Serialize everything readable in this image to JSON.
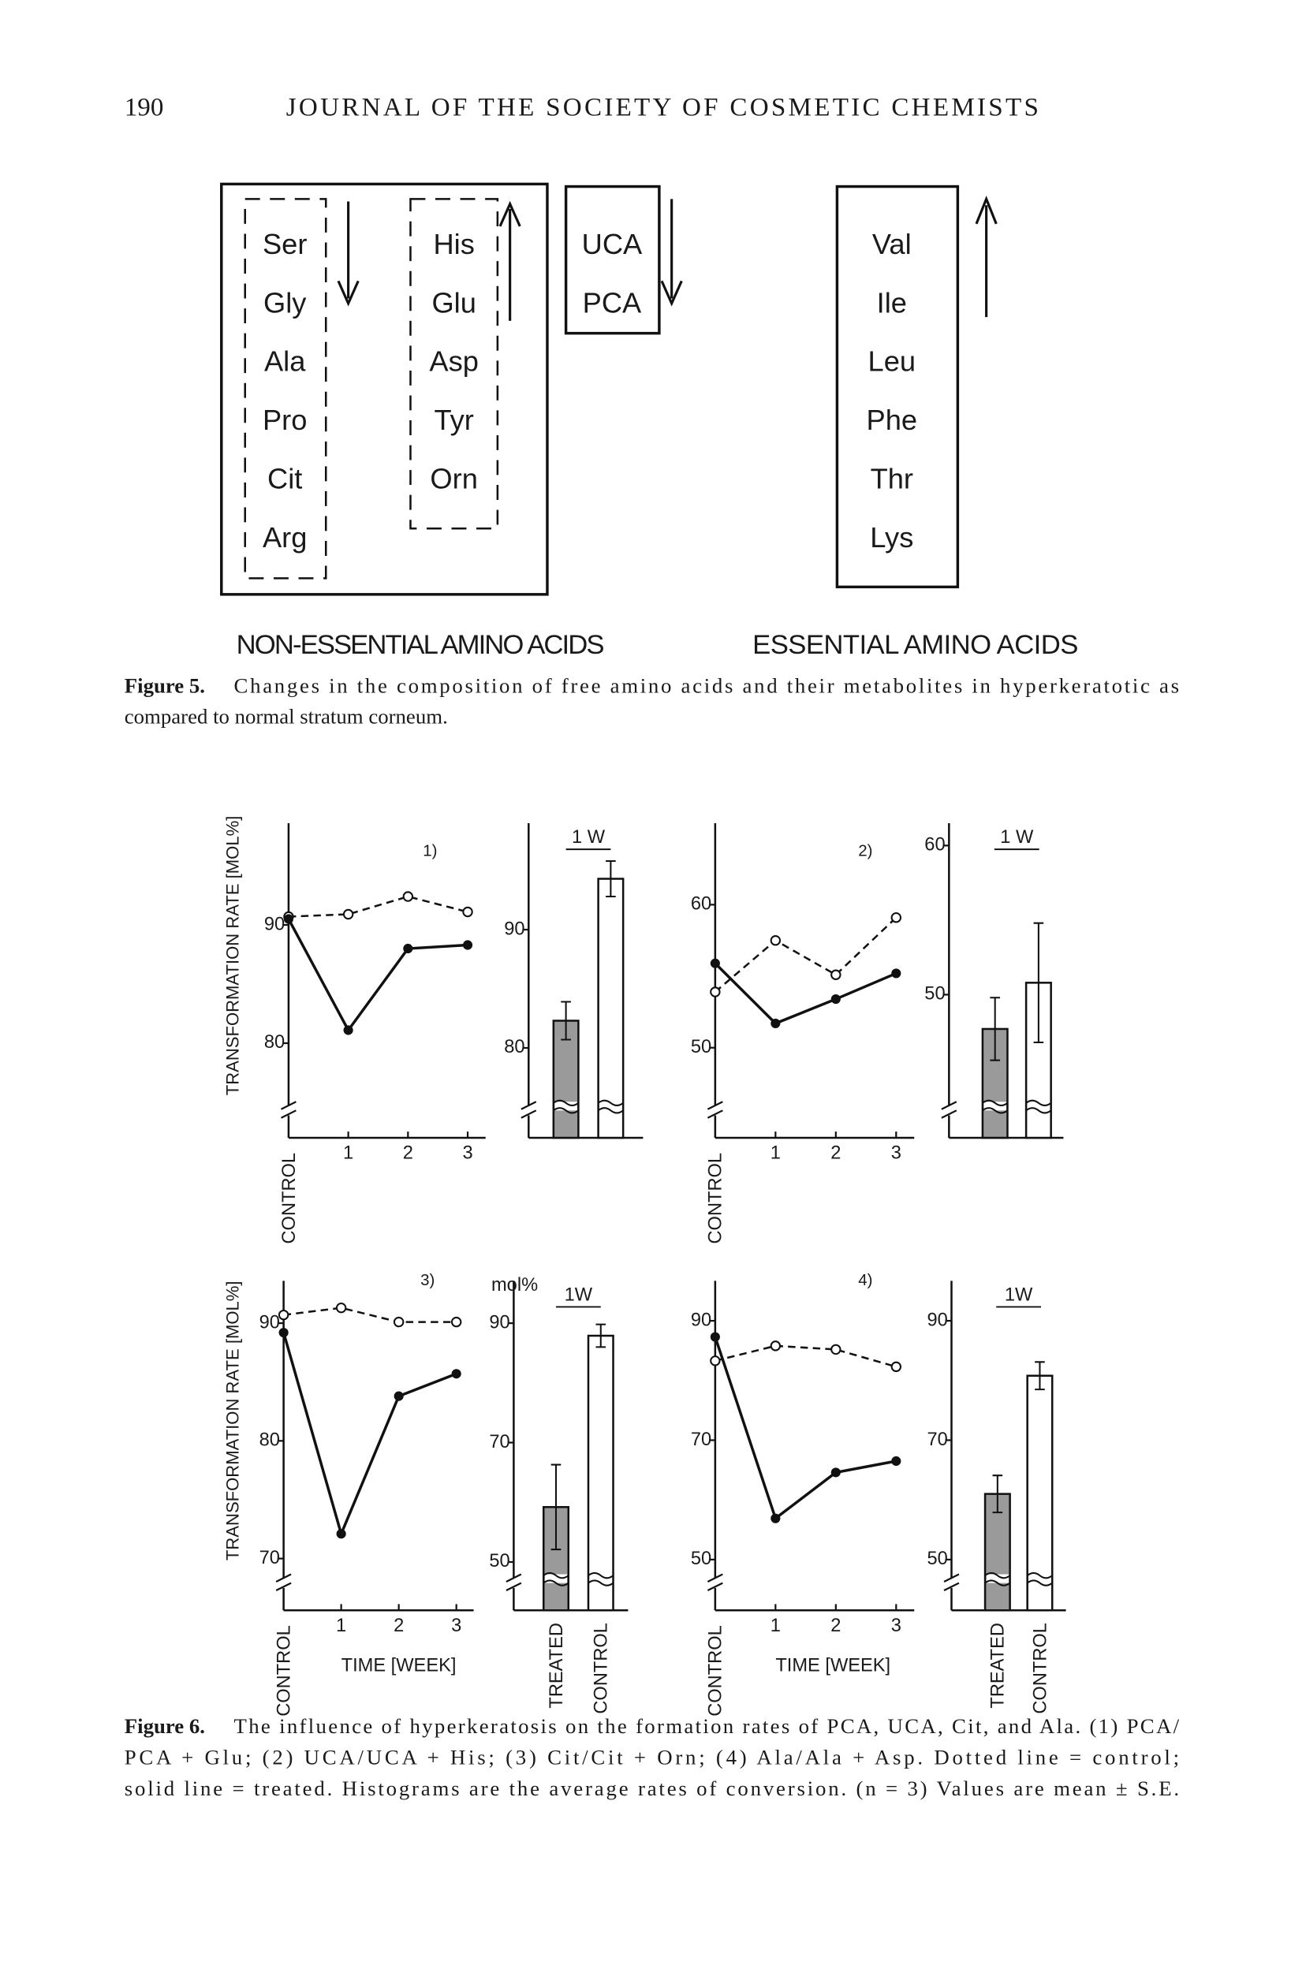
{
  "header": {
    "page": "190",
    "journal": "JOURNAL OF THE SOCIETY OF COSMETIC CHEMISTS"
  },
  "figure5": {
    "columns": [
      [
        "Ser",
        "Gly",
        "Ala",
        "Pro",
        "Cit",
        "Arg"
      ],
      [
        "His",
        "Glu",
        "Asp",
        "Tyr",
        "Orn"
      ],
      [
        "UCA",
        "PCA"
      ],
      [
        "Val",
        "Ile",
        "Leu",
        "Phe",
        "Thr",
        "Lys"
      ]
    ],
    "group_labels": [
      "NON-ESSENTIAL AMINO ACIDS",
      "ESSENTIAL AMINO ACIDS"
    ],
    "caption_label": "Figure 5.",
    "caption_lines": [
      "Changes in the composition of free amino acids and their metabolites in hyperkeratotic as",
      "compared to normal stratum corneum."
    ]
  },
  "chart_data": [
    {
      "type": "line",
      "label": "1)",
      "ylabel": "TRANSFORMATION RATE [MOL%]",
      "categories": [
        "CONTROL",
        "1",
        "2",
        "3"
      ],
      "ylim": [
        72,
        98.6
      ],
      "yticks": [
        80,
        90
      ],
      "series": [
        {
          "style": "dotted",
          "marker": "open",
          "color": "#111111",
          "values": [
            90.7,
            90.9,
            92.4,
            91.1
          ]
        },
        {
          "style": "solid",
          "marker": "filled",
          "color": "#111111",
          "values": [
            90.5,
            81.1,
            88.0,
            88.3
          ]
        }
      ]
    },
    {
      "type": "bar",
      "header": "1 W",
      "categories": [
        null,
        null
      ],
      "ylim": [
        72.4,
        99
      ],
      "yticks": [
        80,
        90
      ],
      "values": [
        82.3,
        94.3
      ],
      "errors": [
        1.6,
        1.5
      ],
      "colors": [
        "#9a9a9a",
        "#ffffff"
      ]
    },
    {
      "type": "line",
      "label": "2)",
      "categories": [
        "CONTROL",
        "1",
        "2",
        "3"
      ],
      "ylim": [
        43.7,
        65.7
      ],
      "yticks": [
        50,
        60
      ],
      "series": [
        {
          "style": "dotted",
          "marker": "open",
          "color": "#111111",
          "values": [
            53.9,
            57.5,
            55.1,
            59.1
          ]
        },
        {
          "style": "solid",
          "marker": "filled",
          "color": "#111111",
          "values": [
            55.9,
            51.7,
            53.4,
            55.2
          ]
        }
      ]
    },
    {
      "type": "bar",
      "header": "1 W",
      "categories": [
        null,
        null
      ],
      "ylim": [
        40.4,
        61.5
      ],
      "yticks": [
        50,
        60
      ],
      "values": [
        47.7,
        50.8
      ],
      "errors": [
        2.1,
        4.0
      ],
      "colors": [
        "#9a9a9a",
        "#ffffff"
      ]
    },
    {
      "type": "line",
      "label": "3)",
      "ylabel": "TRANSFORMATION RATE [MOL%]",
      "xlabel": "TIME [WEEK]",
      "categories": [
        "CONTROL",
        "1",
        "2",
        "3"
      ],
      "ylim": [
        65.6,
        93.6
      ],
      "yticks": [
        70,
        80,
        90
      ],
      "series": [
        {
          "style": "dotted",
          "marker": "open",
          "color": "#111111",
          "values": [
            90.7,
            91.3,
            90.1,
            90.1
          ]
        },
        {
          "style": "solid",
          "marker": "filled",
          "color": "#111111",
          "values": [
            89.2,
            72.1,
            83.8,
            85.7
          ]
        }
      ]
    },
    {
      "type": "bar",
      "header": "1W",
      "ylabel": "mol%",
      "categories": [
        "TREATED",
        "CONTROL"
      ],
      "ylim": [
        41.9,
        97.1
      ],
      "yticks": [
        50,
        70,
        90
      ],
      "values": [
        59.2,
        87.9
      ],
      "errors": [
        7.1,
        1.9
      ],
      "colors": [
        "#9a9a9a",
        "#ffffff"
      ]
    },
    {
      "type": "line",
      "label": "4)",
      "xlabel": "TIME [WEEK]",
      "categories": [
        "CONTROL",
        "1",
        "2",
        "3"
      ],
      "ylim": [
        41.5,
        96.7
      ],
      "yticks": [
        50,
        70,
        90
      ],
      "series": [
        {
          "style": "dotted",
          "marker": "open",
          "color": "#111111",
          "values": [
            83.3,
            85.8,
            85.2,
            82.3
          ]
        },
        {
          "style": "solid",
          "marker": "filled",
          "color": "#111111",
          "values": [
            87.3,
            56.9,
            64.6,
            66.5
          ]
        }
      ]
    },
    {
      "type": "bar",
      "header": "1W",
      "categories": [
        "TREATED",
        "CONTROL"
      ],
      "ylim": [
        41.5,
        96.7
      ],
      "yticks": [
        50,
        70,
        90
      ],
      "values": [
        61.0,
        80.8
      ],
      "errors": [
        3.1,
        2.3
      ],
      "colors": [
        "#9a9a9a",
        "#ffffff"
      ]
    }
  ],
  "figure6": {
    "caption_label": "Figure 6.",
    "caption_lines": [
      "The influence of hyperkeratosis on the formation rates of PCA, UCA, Cit, and Ala. (1) PCA/",
      "PCA + Glu; (2) UCA/UCA + His; (3) Cit/Cit + Orn; (4) Ala/Ala + Asp. Dotted line = control;",
      "solid line = treated. Histograms are the average rates of conversion. (n = 3) Values are mean ± S.E."
    ]
  }
}
